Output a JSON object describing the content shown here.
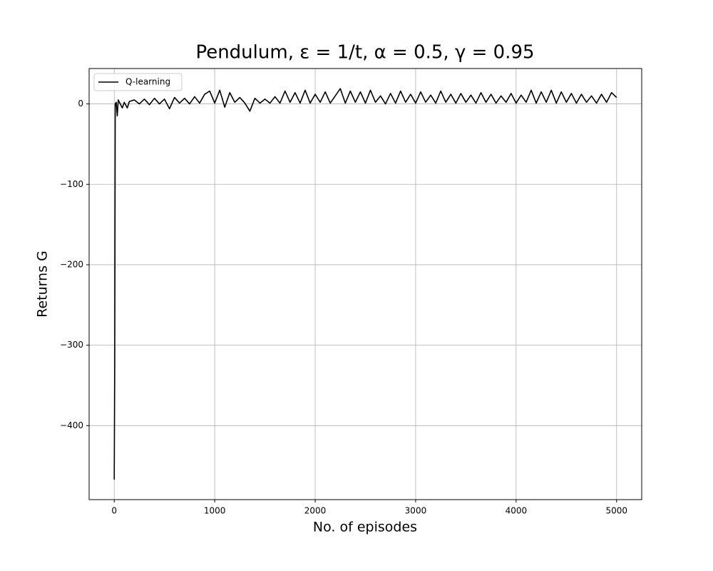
{
  "chart_data": {
    "type": "line",
    "title": "Pendulum, ε = 1/t, α = 0.5, γ = 0.95",
    "xlabel": "No. of episodes",
    "ylabel": "Returns G",
    "x": [
      0,
      5,
      10,
      20,
      30,
      40,
      60,
      80,
      100,
      130,
      150,
      200,
      250,
      300,
      350,
      400,
      450,
      500,
      550,
      600,
      650,
      700,
      750,
      800,
      850,
      900,
      950,
      1000,
      1050,
      1100,
      1150,
      1200,
      1250,
      1300,
      1350,
      1400,
      1450,
      1500,
      1550,
      1600,
      1650,
      1700,
      1750,
      1800,
      1850,
      1900,
      1950,
      2000,
      2050,
      2100,
      2150,
      2200,
      2250,
      2300,
      2350,
      2400,
      2450,
      2500,
      2550,
      2600,
      2650,
      2700,
      2750,
      2800,
      2850,
      2900,
      2950,
      3000,
      3050,
      3100,
      3150,
      3200,
      3250,
      3300,
      3350,
      3400,
      3450,
      3500,
      3550,
      3600,
      3650,
      3700,
      3750,
      3800,
      3850,
      3900,
      3950,
      4000,
      4050,
      4100,
      4150,
      4200,
      4250,
      4300,
      4350,
      4400,
      4450,
      4500,
      4550,
      4600,
      4650,
      4700,
      4750,
      4800,
      4850,
      4900,
      4950,
      5000
    ],
    "series": [
      {
        "name": "Q-learning",
        "color": "#000000",
        "values": [
          -467,
          -320,
          0,
          2,
          -15,
          5,
          0,
          -5,
          2,
          -5,
          3,
          5,
          0,
          6,
          -1,
          7,
          0,
          6,
          -6,
          8,
          1,
          7,
          0,
          9,
          1,
          12,
          16,
          1,
          17,
          -4,
          14,
          2,
          8,
          1,
          -9,
          7,
          1,
          6,
          1,
          9,
          1,
          16,
          2,
          14,
          1,
          17,
          1,
          12,
          2,
          15,
          1,
          10,
          19,
          1,
          16,
          2,
          15,
          1,
          17,
          2,
          10,
          0,
          13,
          1,
          16,
          2,
          12,
          1,
          15,
          2,
          11,
          1,
          16,
          2,
          12,
          1,
          13,
          2,
          11,
          1,
          14,
          2,
          12,
          1,
          10,
          2,
          13,
          1,
          11,
          2,
          17,
          1,
          15,
          2,
          17,
          1,
          15,
          2,
          13,
          1,
          12,
          2,
          10,
          1,
          12,
          2,
          14,
          8
        ]
      }
    ],
    "xlim": [
      -250,
      5250
    ],
    "ylim": [
      -492,
      44
    ],
    "xticks": [
      0,
      1000,
      2000,
      3000,
      4000,
      5000
    ],
    "yticks": [
      0,
      {
        "value": -100,
        "label": "−100"
      },
      {
        "value": -200,
        "label": "−200"
      },
      {
        "value": -300,
        "label": "−300"
      },
      {
        "value": -400,
        "label": "−400"
      }
    ],
    "grid": true,
    "legend": "upper left"
  }
}
